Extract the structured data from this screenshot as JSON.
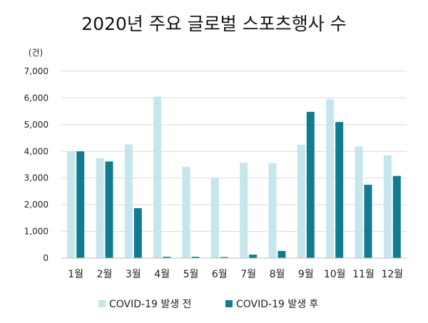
{
  "chart_data": {
    "type": "bar",
    "title": "2020년 주요 글로벌 스포츠행사 수",
    "unit_label": "(건)",
    "categories": [
      "1월",
      "2월",
      "3월",
      "4월",
      "5월",
      "6월",
      "7월",
      "8월",
      "9월",
      "10월",
      "11월",
      "12월"
    ],
    "series": [
      {
        "name": "COVID-19 발생 전",
        "color": "#c5e6ed",
        "values": [
          4000,
          3750,
          4260,
          6050,
          3420,
          3000,
          3570,
          3560,
          4250,
          5950,
          4180,
          3850
        ]
      },
      {
        "name": "COVID-19 발생 후",
        "color": "#117c91",
        "values": [
          4000,
          3620,
          1870,
          50,
          50,
          40,
          130,
          270,
          5480,
          5100,
          2750,
          3080
        ]
      }
    ],
    "ylim": [
      0,
      7000
    ],
    "yticks": [
      "0",
      "1,000",
      "2,000",
      "3,000",
      "4,000",
      "5,000",
      "6,000",
      "7,000"
    ],
    "grid": true,
    "legend_position": "bottom"
  }
}
